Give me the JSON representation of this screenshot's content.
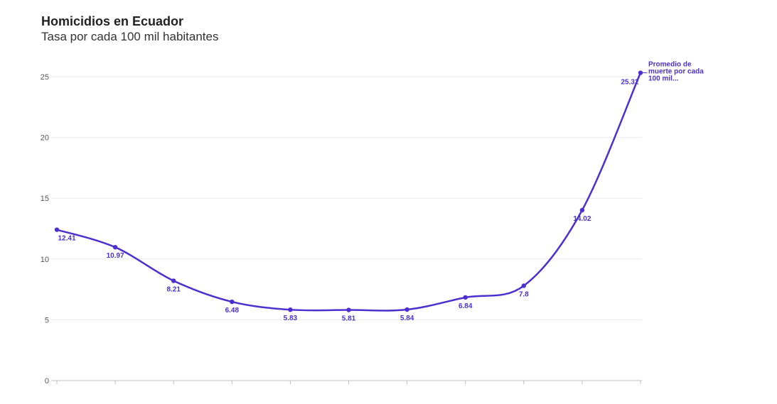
{
  "header": {
    "title": "Homicidios en Ecuador",
    "subtitle": "Tasa por cada 100 mil habitantes"
  },
  "colors": {
    "series": "#4b2fcf",
    "grid": "#e9e9e9",
    "axis": "#bdbdbd"
  },
  "chart_data": {
    "type": "line",
    "title": "Homicidios en Ecuador",
    "subtitle": "Tasa por cada 100 mil habitantes",
    "xlabel": "",
    "ylabel": "",
    "ylim": [
      0,
      25
    ],
    "yticks": [
      0,
      5,
      10,
      15,
      20,
      25
    ],
    "grid": true,
    "legend": "none",
    "series": [
      {
        "name": "Promedio de muerte por cada 100 mil...",
        "values": [
          12.41,
          10.97,
          8.21,
          6.48,
          5.83,
          5.81,
          5.84,
          6.84,
          7.8,
          14.02,
          25.32
        ],
        "labels": [
          "12.41",
          "10.97",
          "8.21",
          "6.48",
          "5.83",
          "5.81",
          "5.84",
          "6.84",
          "7.8",
          "14.02",
          "25.32"
        ]
      }
    ],
    "series_label_lines": [
      "Promedio de",
      "muerte por cada",
      "100 mil..."
    ]
  }
}
